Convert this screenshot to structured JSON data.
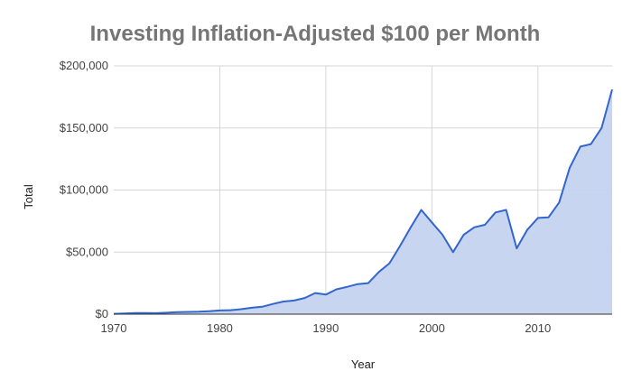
{
  "chart_data": {
    "type": "area",
    "title": "Investing Inflation-Adjusted $100 per Month",
    "xlabel": "Year",
    "ylabel": "Total",
    "xlim": [
      1970,
      2017
    ],
    "ylim": [
      0,
      200000
    ],
    "x_ticks": [
      1970,
      1980,
      1990,
      2000,
      2010
    ],
    "x_tick_labels": [
      "1970",
      "1980",
      "1990",
      "2000",
      "2010"
    ],
    "y_ticks": [
      0,
      50000,
      100000,
      150000,
      200000
    ],
    "y_tick_labels": [
      "$0",
      "$50,000",
      "$100,000",
      "$150,000",
      "$200,000"
    ],
    "grid": true,
    "legend": "none",
    "colors": {
      "line": "#3366cc",
      "fill": "#c5d3ef",
      "grid": "#d6d6d6",
      "axis": "#333333"
    },
    "series": [
      {
        "x": [
          1970,
          1971,
          1972,
          1973,
          1974,
          1975,
          1976,
          1977,
          1978,
          1979,
          1980,
          1981,
          1982,
          1983,
          1984,
          1985,
          1986,
          1987,
          1988,
          1989,
          1990,
          1991,
          1992,
          1993,
          1994,
          1995,
          1996,
          1997,
          1998,
          1999,
          2000,
          2001,
          2002,
          2003,
          2004,
          2005,
          2006,
          2007,
          2008,
          2009,
          2010,
          2011,
          2012,
          2013,
          2014,
          2015,
          2016,
          2017
        ],
        "values": [
          300,
          600,
          900,
          900,
          800,
          1200,
          1600,
          1800,
          2000,
          2400,
          3000,
          3200,
          4000,
          5200,
          6000,
          8200,
          10200,
          11000,
          13000,
          17000,
          15800,
          20000,
          22000,
          24200,
          25000,
          34000,
          41000,
          55000,
          70000,
          84000,
          74000,
          64000,
          50000,
          64000,
          70000,
          72000,
          82000,
          84000,
          53000,
          68000,
          77500,
          78000,
          90000,
          118000,
          135000,
          137000,
          150000,
          181000
        ]
      }
    ]
  }
}
